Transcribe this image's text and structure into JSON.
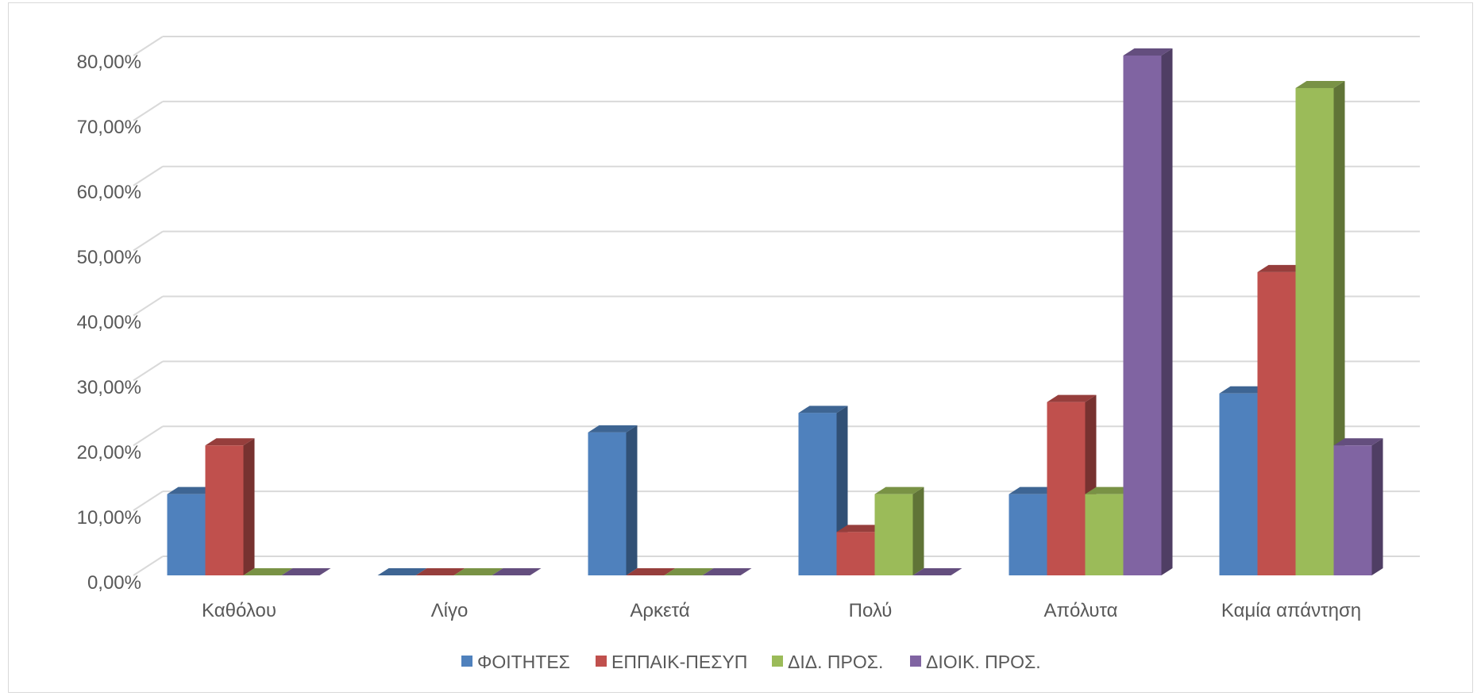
{
  "chart_data": {
    "type": "bar",
    "title": "",
    "xlabel": "",
    "ylabel": "",
    "categories": [
      "Καθόλου",
      "Λίγο",
      "Αρκετά",
      "Πολύ",
      "Απόλυτα",
      "Καμία απάντηση"
    ],
    "series": [
      {
        "name": "ΦΟΙΤΗΤΕΣ",
        "color": "#4f81bd",
        "values": [
          12.5,
          0,
          22,
          25,
          12.5,
          28
        ]
      },
      {
        "name": "ΕΠΠΑΙΚ-ΠΕΣΥΠ",
        "color": "#c0504d",
        "values": [
          20,
          0,
          0,
          6.67,
          26.67,
          46.67
        ]
      },
      {
        "name": "ΔΙΔ. ΠΡΟΣ.",
        "color": "#9bbb59",
        "values": [
          0,
          0,
          0,
          12.5,
          12.5,
          75
        ]
      },
      {
        "name": "ΔΙΟΙΚ. ΠΡΟΣ.",
        "color": "#8064a2",
        "values": [
          0,
          0,
          0,
          0,
          80,
          20
        ]
      }
    ],
    "ylim": [
      0,
      80
    ],
    "yticks": [
      "0,00%",
      "10,00%",
      "20,00%",
      "30,00%",
      "40,00%",
      "50,00%",
      "60,00%",
      "70,00%",
      "80,00%"
    ],
    "grid": true,
    "legend_position": "bottom",
    "style": "3d-clustered-column"
  }
}
